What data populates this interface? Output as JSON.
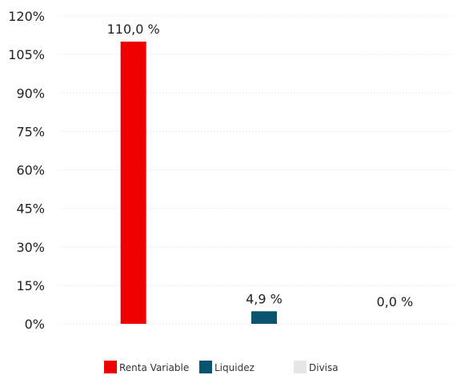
{
  "chart_data": {
    "type": "bar",
    "categories": [
      "Renta Variable",
      "Liquidez",
      "Divisa"
    ],
    "values": [
      110.0,
      4.9,
      0.0
    ],
    "data_labels": [
      "110,0 %",
      "4,9 %",
      "0,0 %"
    ],
    "colors": [
      "#ec0000",
      "#0a5470",
      "#e6e6e6"
    ],
    "ylim": [
      0,
      120
    ],
    "yticks": [
      "0%",
      "15%",
      "30%",
      "45%",
      "60%",
      "75%",
      "90%",
      "105%",
      "120%"
    ],
    "grid": true,
    "legend": {
      "position": "bottom",
      "entries": [
        "Renta Variable",
        "Liquidez",
        "Divisa"
      ]
    }
  }
}
